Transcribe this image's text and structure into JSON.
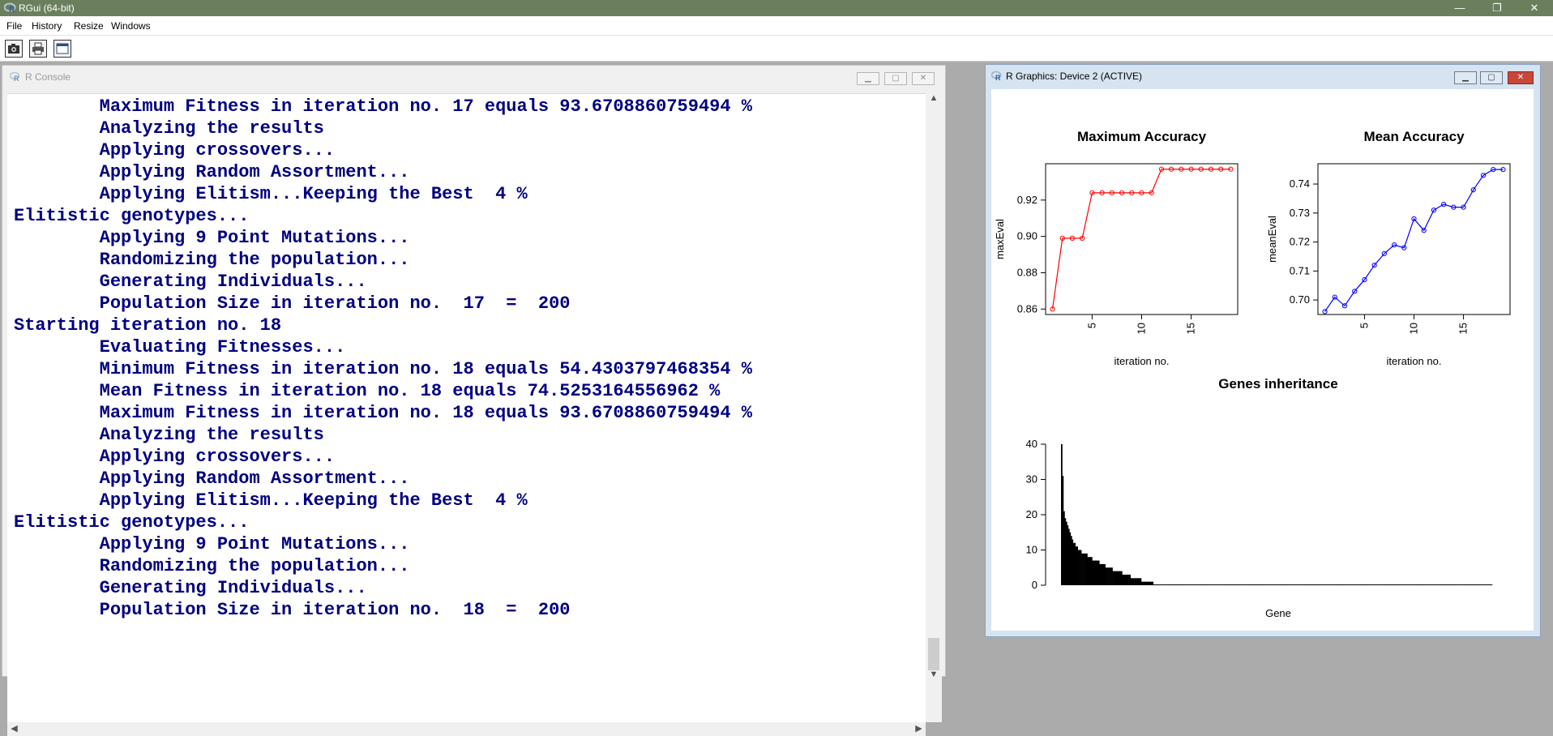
{
  "app": {
    "title": "RGui (64-bit)",
    "icon": "r-logo-icon"
  },
  "window_controls": {
    "minimize": "—",
    "restore": "❐",
    "close": "✕"
  },
  "menu": [
    "File",
    "History",
    "Resize",
    "Windows"
  ],
  "toolbar": {
    "icons": [
      "camera-icon",
      "print-icon",
      "window-icon"
    ]
  },
  "console": {
    "title": "R Console",
    "lines": [
      "        Maximum Fitness in iteration no. 17 equals 93.6708860759494 %",
      "        Analyzing the results",
      "        Applying crossovers...",
      "        Applying Random Assortment...",
      "        Applying Elitism...Keeping the Best  4 %",
      "Elitistic genotypes...",
      "        Applying 9 Point Mutations...",
      "        Randomizing the population...",
      "        Generating Individuals...",
      "        Population Size in iteration no.  17  =  200",
      "Starting iteration no. 18",
      "        Evaluating Fitnesses...",
      "        Minimum Fitness in iteration no. 18 equals 54.4303797468354 %",
      "        Mean Fitness in iteration no. 18 equals 74.5253164556962 %",
      "        Maximum Fitness in iteration no. 18 equals 93.6708860759494 %",
      "        Analyzing the results",
      "        Applying crossovers...",
      "        Applying Random Assortment...",
      "        Applying Elitism...Keeping the Best  4 %",
      "Elitistic genotypes...",
      "        Applying 9 Point Mutations...",
      "        Randomizing the population...",
      "        Generating Individuals...",
      "        Population Size in iteration no.  18  =  200"
    ],
    "text_color": "#000080",
    "scroll_up": "▲",
    "scroll_down": "▼",
    "scroll_left": "◀",
    "scroll_right": "▶"
  },
  "graphics": {
    "title": "R Graphics: Device 2 (ACTIVE)"
  },
  "chart_data": [
    {
      "type": "line",
      "title": "Maximum Accuracy",
      "xlabel": "iteration no.",
      "ylabel": "maxEval",
      "x": [
        1,
        2,
        3,
        4,
        5,
        6,
        7,
        8,
        9,
        10,
        11,
        12,
        13,
        14,
        15,
        16,
        17,
        18,
        19
      ],
      "y": [
        0.86,
        0.899,
        0.899,
        0.899,
        0.924,
        0.924,
        0.924,
        0.924,
        0.924,
        0.924,
        0.924,
        0.937,
        0.937,
        0.937,
        0.937,
        0.937,
        0.937,
        0.937,
        0.937
      ],
      "xlim": [
        0.3,
        19.7
      ],
      "ylim": [
        0.857,
        0.94
      ],
      "xticks": [
        "5",
        "10",
        "15"
      ],
      "yticks": [
        "0.86",
        "0.88",
        "0.90",
        "0.92"
      ],
      "color": "#ff0000"
    },
    {
      "type": "line",
      "title": "Mean Accuracy",
      "xlabel": "iteration no.",
      "ylabel": "meanEval",
      "x": [
        1,
        2,
        3,
        4,
        5,
        6,
        7,
        8,
        9,
        10,
        11,
        12,
        13,
        14,
        15,
        16,
        17,
        18,
        19
      ],
      "y": [
        0.696,
        0.701,
        0.698,
        0.703,
        0.707,
        0.712,
        0.716,
        0.719,
        0.718,
        0.728,
        0.724,
        0.731,
        0.733,
        0.732,
        0.732,
        0.738,
        0.743,
        0.745,
        0.745
      ],
      "xlim": [
        0.3,
        19.7
      ],
      "ylim": [
        0.695,
        0.747
      ],
      "xticks": [
        "5",
        "10",
        "15"
      ],
      "yticks": [
        "0.70",
        "0.71",
        "0.72",
        "0.73",
        "0.74"
      ],
      "color": "#0000ff"
    },
    {
      "type": "bar",
      "title": "Genes inheritance",
      "xlabel": "Gene",
      "ylabel": "",
      "values": [
        40,
        31,
        21,
        19,
        18,
        17,
        16,
        15,
        14,
        13,
        12,
        12,
        11,
        11,
        10,
        10,
        10,
        9,
        9,
        9,
        9,
        9,
        8,
        8,
        8,
        8,
        7,
        7,
        7,
        7,
        7,
        7,
        6,
        6,
        6,
        6,
        6,
        5,
        5,
        5,
        5,
        5,
        5,
        4,
        4,
        4,
        4,
        4,
        4,
        4,
        4,
        3,
        3,
        3,
        3,
        3,
        3,
        3,
        2,
        2,
        2,
        2,
        2,
        2,
        2,
        2,
        2,
        1,
        1,
        1,
        1,
        1,
        1,
        1,
        1,
        1,
        1,
        0,
        0,
        0,
        0,
        0,
        0,
        0,
        0,
        0,
        0,
        0,
        0,
        0,
        0,
        0,
        0,
        0,
        0,
        0,
        0,
        0,
        0,
        0,
        0,
        0,
        0,
        0,
        0,
        0,
        0,
        0,
        0,
        0,
        0,
        0,
        0,
        0,
        0,
        0,
        0,
        0,
        0,
        0,
        0,
        0,
        0,
        0,
        0,
        0,
        0,
        0,
        0,
        0,
        0,
        0,
        0,
        0,
        0,
        0,
        0,
        0,
        0,
        0,
        0,
        0,
        0,
        0,
        0,
        0,
        0,
        0,
        0,
        0,
        0,
        0,
        0,
        0,
        0,
        0,
        0,
        0,
        0,
        0,
        0,
        0,
        0,
        0,
        0,
        0,
        0,
        0,
        0,
        0,
        0,
        0,
        0,
        0,
        0,
        0,
        0,
        0,
        0,
        0,
        0,
        0,
        0,
        0,
        0,
        0,
        0,
        0,
        0,
        0,
        0,
        0,
        0,
        0,
        0,
        0,
        0,
        0,
        0,
        0,
        0,
        0,
        0,
        0,
        0,
        0,
        0,
        0,
        0,
        0,
        0,
        0,
        0,
        0,
        0,
        0,
        0,
        0,
        0,
        0,
        0,
        0,
        0,
        0,
        0,
        0,
        0,
        0,
        0,
        0,
        0,
        0,
        0,
        0,
        0,
        0,
        0,
        0,
        0,
        0,
        0,
        0,
        0,
        0,
        0,
        0,
        0,
        0,
        0,
        0,
        0,
        0,
        0,
        0,
        0,
        0,
        0,
        0,
        0,
        0,
        0,
        0,
        0,
        0,
        0,
        0,
        0,
        0,
        0,
        0,
        0,
        0,
        0,
        0,
        0,
        0,
        0,
        0,
        0,
        0,
        0,
        0,
        0,
        0,
        0,
        0,
        0,
        0,
        0,
        0,
        0,
        0,
        0,
        0,
        0,
        0,
        0,
        0,
        0,
        0,
        0,
        0,
        0,
        0,
        0,
        0,
        0,
        0,
        0,
        0,
        0,
        0,
        0,
        0,
        0,
        0,
        0,
        0,
        0,
        0,
        0,
        0,
        0,
        0,
        0,
        0,
        0,
        0,
        0,
        0,
        0,
        0,
        0,
        0,
        0,
        0,
        0,
        0,
        0,
        0,
        0,
        0,
        0,
        0,
        0,
        0,
        0,
        0,
        0,
        0,
        0,
        0,
        0,
        0,
        0,
        0,
        0,
        0,
        0,
        0
      ],
      "ylim": [
        0,
        40
      ],
      "yticks": [
        "0",
        "10",
        "20",
        "30",
        "40"
      ],
      "color": "#000000"
    }
  ]
}
